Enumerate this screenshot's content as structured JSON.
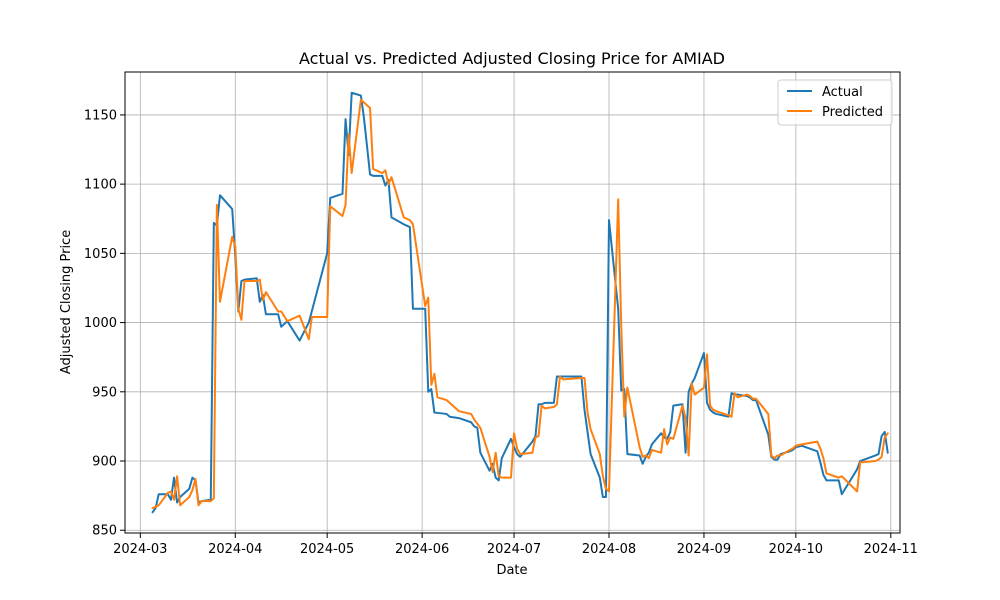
{
  "chart_data": {
    "type": "line",
    "title": "Actual vs. Predicted Adjusted Closing Price for AMIAD",
    "xlabel": "Date",
    "ylabel": "Adjusted Closing Price",
    "xlim": [
      "2024-02-25",
      "2024-11-04"
    ],
    "ylim": [
      848,
      1181
    ],
    "x_ticks": [
      "2024-03",
      "2024-04",
      "2024-05",
      "2024-06",
      "2024-07",
      "2024-08",
      "2024-09",
      "2024-10",
      "2024-11"
    ],
    "y_ticks": [
      850,
      900,
      950,
      1000,
      1050,
      1100,
      1150
    ],
    "grid": true,
    "legend_position": "top-right",
    "series": [
      {
        "name": "Actual",
        "color": "#1f77b4",
        "points": [
          [
            "2024-03-05",
            863
          ],
          [
            "2024-03-06",
            866
          ],
          [
            "2024-03-07",
            876
          ],
          [
            "2024-03-10",
            876
          ],
          [
            "2024-03-11",
            872
          ],
          [
            "2024-03-12",
            888
          ],
          [
            "2024-03-13",
            870
          ],
          [
            "2024-03-14",
            874
          ],
          [
            "2024-03-17",
            880
          ],
          [
            "2024-03-18",
            888
          ],
          [
            "2024-03-19",
            886
          ],
          [
            "2024-03-20",
            870
          ],
          [
            "2024-03-21",
            871
          ],
          [
            "2024-03-24",
            872
          ],
          [
            "2024-03-25",
            1072
          ],
          [
            "2024-03-26",
            1070
          ],
          [
            "2024-03-27",
            1092
          ],
          [
            "2024-03-31",
            1082
          ],
          [
            "2024-04-01",
            1048
          ],
          [
            "2024-04-02",
            1008
          ],
          [
            "2024-04-03",
            1030
          ],
          [
            "2024-04-04",
            1031
          ],
          [
            "2024-04-08",
            1032
          ],
          [
            "2024-04-09",
            1015
          ],
          [
            "2024-04-10",
            1020
          ],
          [
            "2024-04-11",
            1006
          ],
          [
            "2024-04-15",
            1006
          ],
          [
            "2024-04-16",
            997
          ],
          [
            "2024-04-18",
            1001
          ],
          [
            "2024-04-22",
            987
          ],
          [
            "2024-04-25",
            1000
          ],
          [
            "2024-05-01",
            1050
          ],
          [
            "2024-05-02",
            1090
          ],
          [
            "2024-05-06",
            1093
          ],
          [
            "2024-05-07",
            1147
          ],
          [
            "2024-05-08",
            1121
          ],
          [
            "2024-05-09",
            1166
          ],
          [
            "2024-05-12",
            1164
          ],
          [
            "2024-05-13",
            1148
          ],
          [
            "2024-05-15",
            1107
          ],
          [
            "2024-05-16",
            1106
          ],
          [
            "2024-05-19",
            1106
          ],
          [
            "2024-05-20",
            1099
          ],
          [
            "2024-05-21",
            1103
          ],
          [
            "2024-05-22",
            1076
          ],
          [
            "2024-05-26",
            1071
          ],
          [
            "2024-05-28",
            1069
          ],
          [
            "2024-05-29",
            1010
          ],
          [
            "2024-06-02",
            1010
          ],
          [
            "2024-06-03",
            950
          ],
          [
            "2024-06-04",
            952
          ],
          [
            "2024-06-05",
            935
          ],
          [
            "2024-06-09",
            934
          ],
          [
            "2024-06-10",
            932
          ],
          [
            "2024-06-13",
            931
          ],
          [
            "2024-06-17",
            928
          ],
          [
            "2024-06-18",
            925
          ],
          [
            "2024-06-19",
            924
          ],
          [
            "2024-06-20",
            906
          ],
          [
            "2024-06-23",
            893
          ],
          [
            "2024-06-24",
            898
          ],
          [
            "2024-06-25",
            888
          ],
          [
            "2024-06-26",
            886
          ],
          [
            "2024-06-27",
            902
          ],
          [
            "2024-06-30",
            916
          ],
          [
            "2024-07-01",
            910
          ],
          [
            "2024-07-02",
            905
          ],
          [
            "2024-07-03",
            903
          ],
          [
            "2024-07-07",
            914
          ],
          [
            "2024-07-08",
            918
          ],
          [
            "2024-07-09",
            941
          ],
          [
            "2024-07-10",
            941
          ],
          [
            "2024-07-11",
            942
          ],
          [
            "2024-07-14",
            942
          ],
          [
            "2024-07-15",
            961
          ],
          [
            "2024-07-23",
            961
          ],
          [
            "2024-07-24",
            937
          ],
          [
            "2024-07-25",
            921
          ],
          [
            "2024-07-26",
            905
          ],
          [
            "2024-07-29",
            888
          ],
          [
            "2024-07-30",
            874
          ],
          [
            "2024-07-31",
            874
          ],
          [
            "2024-08-01",
            1074
          ],
          [
            "2024-08-04",
            1010
          ],
          [
            "2024-08-05",
            951
          ],
          [
            "2024-08-06",
            952
          ],
          [
            "2024-08-07",
            905
          ],
          [
            "2024-08-11",
            904
          ],
          [
            "2024-08-12",
            898
          ],
          [
            "2024-08-13",
            903
          ],
          [
            "2024-08-14",
            906
          ],
          [
            "2024-08-15",
            912
          ],
          [
            "2024-08-18",
            920
          ],
          [
            "2024-08-19",
            917
          ],
          [
            "2024-08-20",
            916
          ],
          [
            "2024-08-21",
            921
          ],
          [
            "2024-08-22",
            940
          ],
          [
            "2024-08-25",
            941
          ],
          [
            "2024-08-26",
            906
          ],
          [
            "2024-08-27",
            950
          ],
          [
            "2024-08-28",
            956
          ],
          [
            "2024-08-29",
            960
          ],
          [
            "2024-09-01",
            978
          ],
          [
            "2024-09-02",
            942
          ],
          [
            "2024-09-03",
            937
          ],
          [
            "2024-09-04",
            935
          ],
          [
            "2024-09-05",
            934
          ],
          [
            "2024-09-09",
            932
          ],
          [
            "2024-09-10",
            949
          ],
          [
            "2024-09-11",
            948
          ],
          [
            "2024-09-12",
            948
          ],
          [
            "2024-09-15",
            947
          ],
          [
            "2024-09-16",
            946
          ],
          [
            "2024-09-17",
            944
          ],
          [
            "2024-09-18",
            944
          ],
          [
            "2024-09-22",
            919
          ],
          [
            "2024-09-23",
            903
          ],
          [
            "2024-09-24",
            901
          ],
          [
            "2024-09-25",
            901
          ],
          [
            "2024-09-26",
            905
          ],
          [
            "2024-09-29",
            907
          ],
          [
            "2024-09-30",
            908
          ],
          [
            "2024-10-01",
            910
          ],
          [
            "2024-10-03",
            911
          ],
          [
            "2024-10-08",
            907
          ],
          [
            "2024-10-09",
            899
          ],
          [
            "2024-10-10",
            890
          ],
          [
            "2024-10-11",
            886
          ],
          [
            "2024-10-15",
            886
          ],
          [
            "2024-10-16",
            876
          ],
          [
            "2024-10-21",
            894
          ],
          [
            "2024-10-22",
            900
          ],
          [
            "2024-10-27",
            904
          ],
          [
            "2024-10-28",
            905
          ],
          [
            "2024-10-29",
            918
          ],
          [
            "2024-10-30",
            921
          ],
          [
            "2024-10-31",
            906
          ]
        ]
      },
      {
        "name": "Predicted",
        "color": "#ff7f0e",
        "points": [
          [
            "2024-03-05",
            866
          ],
          [
            "2024-03-06",
            867
          ],
          [
            "2024-03-07",
            868
          ],
          [
            "2024-03-10",
            877
          ],
          [
            "2024-03-11",
            878
          ],
          [
            "2024-03-12",
            872
          ],
          [
            "2024-03-13",
            889
          ],
          [
            "2024-03-14",
            868
          ],
          [
            "2024-03-17",
            874
          ],
          [
            "2024-03-18",
            879
          ],
          [
            "2024-03-19",
            887
          ],
          [
            "2024-03-20",
            868
          ],
          [
            "2024-03-21",
            871
          ],
          [
            "2024-03-24",
            871
          ],
          [
            "2024-03-25",
            873
          ],
          [
            "2024-03-26",
            1085
          ],
          [
            "2024-03-27",
            1015
          ],
          [
            "2024-03-31",
            1062
          ],
          [
            "2024-04-01",
            1055
          ],
          [
            "2024-04-02",
            1010
          ],
          [
            "2024-04-03",
            1002
          ],
          [
            "2024-04-04",
            1030
          ],
          [
            "2024-04-08",
            1030
          ],
          [
            "2024-04-09",
            1031
          ],
          [
            "2024-04-10",
            1016
          ],
          [
            "2024-04-11",
            1022
          ],
          [
            "2024-04-15",
            1008
          ],
          [
            "2024-04-16",
            1008
          ],
          [
            "2024-04-18",
            1001
          ],
          [
            "2024-04-22",
            1005
          ],
          [
            "2024-04-25",
            988
          ],
          [
            "2024-04-26",
            1004
          ],
          [
            "2024-05-01",
            1004
          ],
          [
            "2024-05-02",
            1084
          ],
          [
            "2024-05-06",
            1077
          ],
          [
            "2024-05-07",
            1085
          ],
          [
            "2024-05-08",
            1136
          ],
          [
            "2024-05-09",
            1108
          ],
          [
            "2024-05-12",
            1161
          ],
          [
            "2024-05-13",
            1159
          ],
          [
            "2024-05-15",
            1155
          ],
          [
            "2024-05-16",
            1111
          ],
          [
            "2024-05-19",
            1108
          ],
          [
            "2024-05-20",
            1110
          ],
          [
            "2024-05-21",
            1100
          ],
          [
            "2024-05-22",
            1105
          ],
          [
            "2024-05-26",
            1076
          ],
          [
            "2024-05-28",
            1074
          ],
          [
            "2024-05-29",
            1071
          ],
          [
            "2024-06-02",
            1012
          ],
          [
            "2024-06-03",
            1018
          ],
          [
            "2024-06-04",
            955
          ],
          [
            "2024-06-05",
            963
          ],
          [
            "2024-06-06",
            946
          ],
          [
            "2024-06-09",
            944
          ],
          [
            "2024-06-10",
            942
          ],
          [
            "2024-06-13",
            936
          ],
          [
            "2024-06-17",
            934
          ],
          [
            "2024-06-18",
            930
          ],
          [
            "2024-06-19",
            927
          ],
          [
            "2024-06-20",
            924
          ],
          [
            "2024-06-23",
            903
          ],
          [
            "2024-06-24",
            892
          ],
          [
            "2024-06-25",
            906
          ],
          [
            "2024-06-26",
            889
          ],
          [
            "2024-06-27",
            888
          ],
          [
            "2024-06-30",
            888
          ],
          [
            "2024-07-01",
            920
          ],
          [
            "2024-07-02",
            909
          ],
          [
            "2024-07-03",
            905
          ],
          [
            "2024-07-07",
            906
          ],
          [
            "2024-07-08",
            917
          ],
          [
            "2024-07-09",
            918
          ],
          [
            "2024-07-10",
            940
          ],
          [
            "2024-07-11",
            938
          ],
          [
            "2024-07-14",
            939
          ],
          [
            "2024-07-15",
            941
          ],
          [
            "2024-07-16",
            961
          ],
          [
            "2024-07-17",
            959
          ],
          [
            "2024-07-23",
            960
          ],
          [
            "2024-07-24",
            960
          ],
          [
            "2024-07-25",
            935
          ],
          [
            "2024-07-26",
            923
          ],
          [
            "2024-07-29",
            905
          ],
          [
            "2024-07-30",
            889
          ],
          [
            "2024-07-31",
            880
          ],
          [
            "2024-08-01",
            878
          ],
          [
            "2024-08-04",
            1089
          ],
          [
            "2024-08-05",
            997
          ],
          [
            "2024-08-06",
            932
          ],
          [
            "2024-08-07",
            953
          ],
          [
            "2024-08-11",
            910
          ],
          [
            "2024-08-12",
            903
          ],
          [
            "2024-08-13",
            904
          ],
          [
            "2024-08-14",
            902
          ],
          [
            "2024-08-15",
            908
          ],
          [
            "2024-08-18",
            906
          ],
          [
            "2024-08-19",
            923
          ],
          [
            "2024-08-20",
            912
          ],
          [
            "2024-08-21",
            917
          ],
          [
            "2024-08-22",
            916
          ],
          [
            "2024-08-25",
            940
          ],
          [
            "2024-08-26",
            931
          ],
          [
            "2024-08-27",
            904
          ],
          [
            "2024-08-28",
            956
          ],
          [
            "2024-08-29",
            948
          ],
          [
            "2024-09-01",
            953
          ],
          [
            "2024-09-02",
            977
          ],
          [
            "2024-09-03",
            940
          ],
          [
            "2024-09-04",
            937
          ],
          [
            "2024-09-05",
            936
          ],
          [
            "2024-09-09",
            933
          ],
          [
            "2024-09-10",
            932
          ],
          [
            "2024-09-11",
            949
          ],
          [
            "2024-09-12",
            946
          ],
          [
            "2024-09-15",
            948
          ],
          [
            "2024-09-16",
            947
          ],
          [
            "2024-09-17",
            945
          ],
          [
            "2024-09-18",
            945
          ],
          [
            "2024-09-22",
            934
          ],
          [
            "2024-09-23",
            904
          ],
          [
            "2024-09-24",
            902
          ],
          [
            "2024-09-25",
            904
          ],
          [
            "2024-09-26",
            904
          ],
          [
            "2024-09-29",
            908
          ],
          [
            "2024-09-30",
            909
          ],
          [
            "2024-10-01",
            911
          ],
          [
            "2024-10-03",
            912
          ],
          [
            "2024-10-08",
            914
          ],
          [
            "2024-10-09",
            909
          ],
          [
            "2024-10-10",
            902
          ],
          [
            "2024-10-11",
            891
          ],
          [
            "2024-10-15",
            888
          ],
          [
            "2024-10-16",
            889
          ],
          [
            "2024-10-21",
            878
          ],
          [
            "2024-10-22",
            899
          ],
          [
            "2024-10-27",
            900
          ],
          [
            "2024-10-28",
            901
          ],
          [
            "2024-10-29",
            903
          ],
          [
            "2024-10-30",
            917
          ],
          [
            "2024-10-31",
            920
          ]
        ]
      }
    ]
  }
}
